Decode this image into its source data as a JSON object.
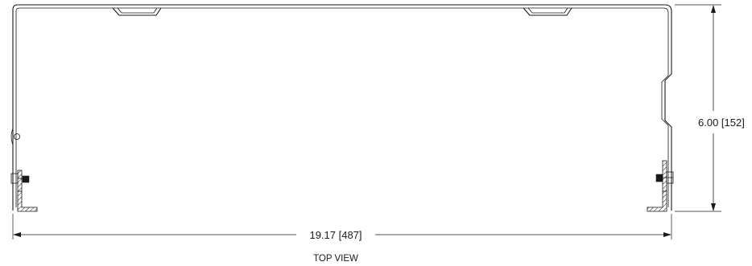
{
  "drawing": {
    "view_label": "TOP VIEW",
    "width_dimension": "19.17 [487]",
    "height_dimension": "6.00 [152]"
  }
}
